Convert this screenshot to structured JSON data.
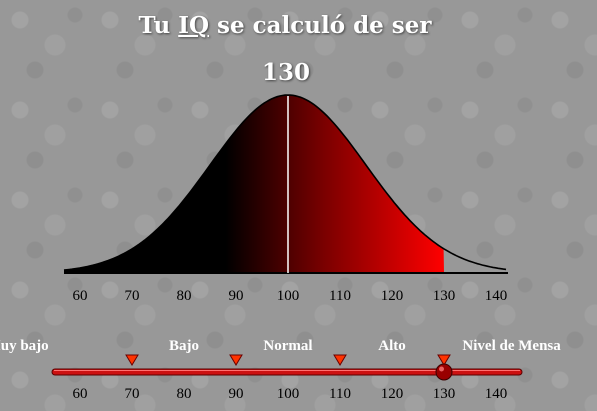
{
  "title": {
    "before": "Tu ",
    "emphasis": "IQ",
    "after": " se calculó de ser"
  },
  "score": "130",
  "colors": {
    "curve_left": "#000000",
    "curve_right": "#ff0000",
    "slider_track": "#cc1111",
    "marker": "#ff3300",
    "knob": "#990000",
    "mean_line": "#ffffff"
  },
  "chart_data": {
    "type": "area",
    "description_free": true,
    "distribution": {
      "mean": 100,
      "sd": 15,
      "shaded_to": 130
    },
    "x_axis": {
      "ticks": [
        60,
        70,
        80,
        90,
        100,
        110,
        120,
        130,
        140
      ],
      "range": [
        55,
        145
      ]
    },
    "mean_marker": 100
  },
  "scale": {
    "categories": [
      {
        "label": "Muy bajo",
        "at": 48
      },
      {
        "label": "Bajo",
        "at": 80
      },
      {
        "label": "Normal",
        "at": 100
      },
      {
        "label": "Alto",
        "at": 120
      },
      {
        "label": "Nivel de Mensa",
        "at": 143
      }
    ],
    "thresholds": [
      70,
      90,
      110,
      130
    ],
    "ticks": [
      60,
      70,
      80,
      90,
      100,
      110,
      120,
      130,
      140
    ],
    "value": 130
  }
}
